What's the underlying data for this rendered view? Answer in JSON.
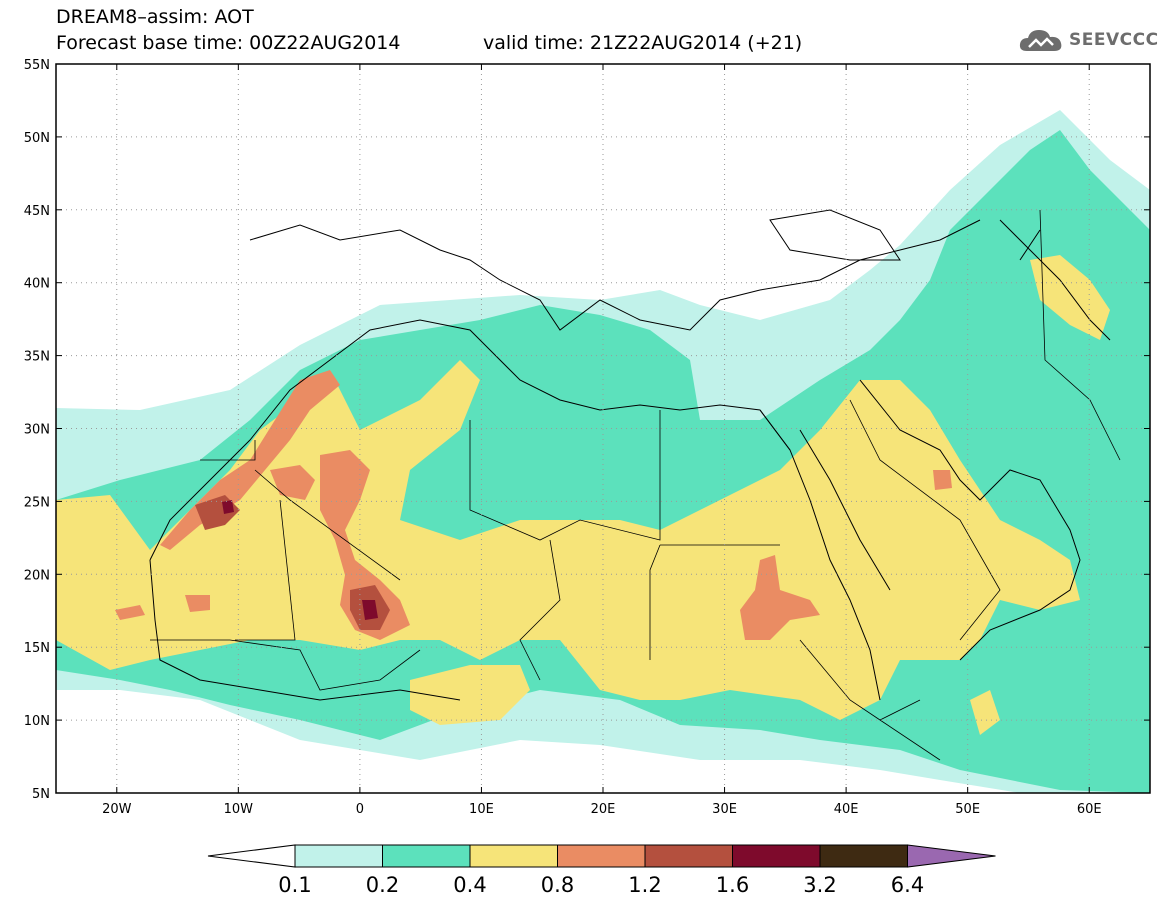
{
  "header": {
    "title": "DREAM8–assim: AOT",
    "base_time": "Forecast base time: 00Z22AUG2014",
    "valid_time": "valid time: 21Z22AUG2014 (+21)"
  },
  "logo": {
    "text": "SEEVCCC",
    "icon": "cloud-icon"
  },
  "map": {
    "lon_range": [
      -25,
      65
    ],
    "lat_range": [
      5,
      55
    ],
    "lon_ticks": [
      {
        "value": -20,
        "label": "20W"
      },
      {
        "value": -10,
        "label": "10W"
      },
      {
        "value": 0,
        "label": "0"
      },
      {
        "value": 10,
        "label": "10E"
      },
      {
        "value": 20,
        "label": "20E"
      },
      {
        "value": 30,
        "label": "30E"
      },
      {
        "value": 40,
        "label": "40E"
      },
      {
        "value": 50,
        "label": "50E"
      },
      {
        "value": 60,
        "label": "60E"
      }
    ],
    "lat_ticks": [
      {
        "value": 5,
        "label": "5N"
      },
      {
        "value": 10,
        "label": "10N"
      },
      {
        "value": 15,
        "label": "15N"
      },
      {
        "value": 20,
        "label": "20N"
      },
      {
        "value": 25,
        "label": "25N"
      },
      {
        "value": 30,
        "label": "30N"
      },
      {
        "value": 35,
        "label": "35N"
      },
      {
        "value": 40,
        "label": "40N"
      },
      {
        "value": 45,
        "label": "45N"
      },
      {
        "value": 50,
        "label": "50N"
      },
      {
        "value": 55,
        "label": "55N"
      }
    ]
  },
  "colorbar": {
    "bins": [
      {
        "color": "#c1f2ea"
      },
      {
        "color": "#5ce1bc"
      },
      {
        "color": "#f6e479"
      },
      {
        "color": "#ea8c63"
      },
      {
        "color": "#b4503e"
      },
      {
        "color": "#7e0a2c"
      },
      {
        "color": "#3e2a12"
      }
    ],
    "under_color": "#ffffff",
    "over_color": "#9a68b0",
    "labels": [
      "0.1",
      "0.2",
      "0.4",
      "0.8",
      "1.2",
      "1.6",
      "3.2",
      "6.4"
    ]
  }
}
